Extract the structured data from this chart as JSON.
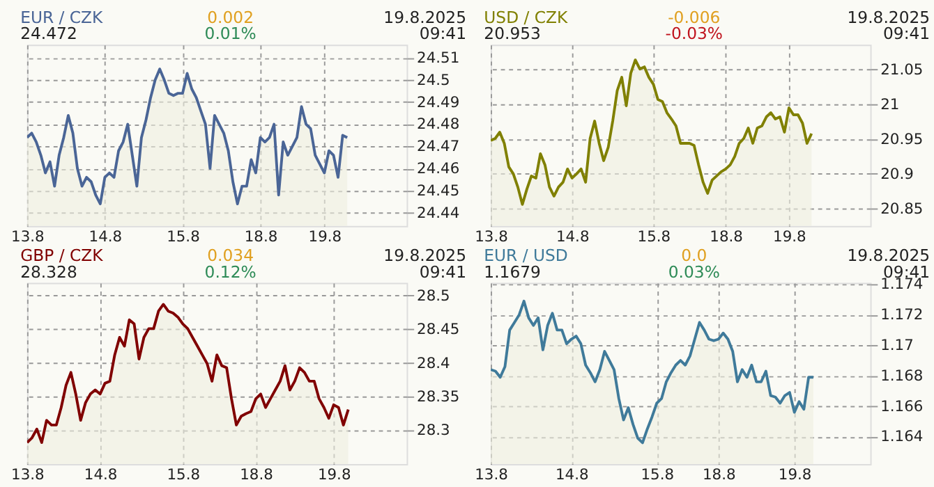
{
  "chart_data": [
    {
      "type": "area",
      "title": "EUR / CZK",
      "subtitle": "24.472",
      "annotations": [
        "0.002",
        "0.01%",
        "19.8.2025 09:41"
      ],
      "color": "#4a6596",
      "grid": true,
      "categories": [
        "13.8",
        null,
        null,
        null,
        null,
        null,
        null,
        null,
        null,
        null,
        null,
        null,
        null,
        null,
        null,
        null,
        null,
        "14.8",
        null,
        null,
        null,
        null,
        null,
        null,
        null,
        null,
        null,
        null,
        null,
        null,
        null,
        null,
        null,
        null,
        "15.8",
        null,
        null,
        null,
        null,
        null,
        null,
        null,
        null,
        null,
        null,
        null,
        null,
        null,
        null,
        null,
        null,
        "18.8",
        null,
        null,
        null,
        null,
        null,
        null,
        null,
        null,
        null,
        null,
        null,
        null,
        null,
        "19.8",
        null,
        null,
        null,
        null,
        null,
        null,
        null,
        null,
        null,
        null,
        null,
        null,
        null,
        null,
        null,
        null,
        null,
        null
      ],
      "ylim": [
        24.434,
        24.516
      ],
      "yticks": [
        24.44,
        24.45,
        24.46,
        24.47,
        24.48,
        24.49,
        24.5,
        24.51
      ],
      "values": [
        24.474,
        24.476,
        24.472,
        24.466,
        24.458,
        24.463,
        24.452,
        24.466,
        24.474,
        24.484,
        24.476,
        24.46,
        24.452,
        24.456,
        24.454,
        24.448,
        24.444,
        24.456,
        24.458,
        24.456,
        24.468,
        24.472,
        24.48,
        24.466,
        24.452,
        24.474,
        24.482,
        24.492,
        24.5,
        24.505,
        24.5,
        24.494,
        24.493,
        24.494,
        24.494,
        24.503,
        24.496,
        24.492,
        24.486,
        24.48,
        24.46,
        24.484,
        24.48,
        24.476,
        24.468,
        24.454,
        24.444,
        24.452,
        24.452,
        24.464,
        24.458,
        24.474,
        24.472,
        24.474,
        24.48,
        24.448,
        24.472,
        24.466,
        24.47,
        24.474,
        24.488,
        24.48,
        24.478,
        24.466,
        24.462,
        24.458,
        24.468,
        24.466,
        24.456,
        24.475,
        24.474,
        null,
        null,
        null,
        null,
        null,
        null,
        null,
        null,
        null,
        null,
        null,
        null,
        null
      ]
    },
    {
      "type": "area",
      "title": "USD / CZK",
      "subtitle": "20.953",
      "annotations": [
        "-0.006",
        "-0.03%",
        "19.8.2025 09:41"
      ],
      "color": "#808000",
      "grid": true,
      "categories": [
        "13.8",
        null,
        null,
        null,
        null,
        null,
        null,
        null,
        null,
        null,
        null,
        null,
        null,
        null,
        null,
        null,
        null,
        null,
        "14.8",
        null,
        null,
        null,
        null,
        null,
        null,
        null,
        null,
        null,
        null,
        null,
        null,
        null,
        null,
        null,
        null,
        null,
        "15.8",
        null,
        null,
        null,
        null,
        null,
        null,
        null,
        null,
        null,
        null,
        null,
        null,
        null,
        null,
        null,
        "18.8",
        null,
        null,
        null,
        null,
        null,
        null,
        null,
        null,
        null,
        null,
        null,
        null,
        null,
        "19.8",
        null,
        null,
        null,
        null,
        null,
        null,
        null,
        null,
        null,
        null,
        null,
        null,
        null,
        null,
        null,
        null,
        null,
        null
      ],
      "ylim": [
        20.825,
        21.086
      ],
      "yticks": [
        20.85,
        20.9,
        20.95,
        21,
        21.05
      ],
      "values": [
        20.948,
        20.951,
        20.96,
        20.944,
        20.91,
        20.9,
        20.881,
        20.856,
        20.878,
        20.897,
        20.894,
        20.929,
        20.913,
        20.881,
        20.868,
        20.881,
        20.888,
        20.907,
        20.894,
        20.9,
        20.907,
        20.888,
        20.951,
        20.976,
        20.944,
        20.919,
        20.938,
        20.976,
        21.02,
        21.039,
        20.998,
        21.045,
        21.064,
        21.051,
        21.054,
        21.039,
        21.029,
        21.007,
        21.004,
        20.988,
        20.979,
        20.969,
        20.944,
        20.944,
        20.944,
        20.941,
        20.913,
        20.888,
        20.872,
        20.891,
        20.897,
        20.903,
        20.907,
        20.913,
        20.925,
        20.944,
        20.951,
        20.966,
        20.944,
        20.966,
        20.969,
        20.982,
        20.988,
        20.979,
        20.982,
        20.96,
        20.995,
        20.985,
        20.985,
        20.973,
        20.944,
        20.958,
        null,
        null,
        null,
        null,
        null,
        null,
        null,
        null,
        null,
        null,
        null,
        null,
        null
      ]
    },
    {
      "type": "area",
      "title": "GBP / CZK",
      "subtitle": "28.328",
      "annotations": [
        "0.034",
        "0.12%",
        "19.8.2025 09:41"
      ],
      "color": "#800000",
      "grid": true,
      "categories": [
        "13.8",
        null,
        null,
        null,
        null,
        null,
        null,
        null,
        null,
        null,
        null,
        null,
        null,
        null,
        null,
        "14.8",
        null,
        null,
        null,
        null,
        null,
        null,
        null,
        null,
        null,
        null,
        null,
        null,
        null,
        null,
        null,
        null,
        "15.8",
        null,
        null,
        null,
        null,
        null,
        null,
        null,
        null,
        null,
        null,
        null,
        null,
        null,
        null,
        "18.8",
        null,
        null,
        null,
        null,
        null,
        null,
        null,
        null,
        null,
        null,
        null,
        null,
        null,
        null,
        null,
        "19.8",
        null,
        null,
        null,
        null,
        null,
        null,
        null,
        null,
        null,
        null,
        null,
        null,
        null,
        null,
        null
      ],
      "ylim": [
        28.25,
        28.519
      ],
      "yticks": [
        28.3,
        28.35,
        28.4,
        28.45,
        28.5
      ],
      "values": [
        28.282,
        28.289,
        28.302,
        28.282,
        28.315,
        28.308,
        28.308,
        28.334,
        28.367,
        28.386,
        28.354,
        28.315,
        28.341,
        28.354,
        28.36,
        28.354,
        28.37,
        28.373,
        28.412,
        28.438,
        28.425,
        28.464,
        28.458,
        28.406,
        28.438,
        28.451,
        28.451,
        28.477,
        28.487,
        28.477,
        28.474,
        28.468,
        28.458,
        28.451,
        28.438,
        28.425,
        28.412,
        28.399,
        28.373,
        28.412,
        28.396,
        28.393,
        28.347,
        28.308,
        28.321,
        28.325,
        28.328,
        28.347,
        28.354,
        28.334,
        28.347,
        28.36,
        28.373,
        28.396,
        28.36,
        28.373,
        28.393,
        28.386,
        28.373,
        28.373,
        28.347,
        28.334,
        28.318,
        28.338,
        28.334,
        28.308,
        28.331,
        null,
        null,
        null,
        null,
        null,
        null,
        null,
        null,
        null,
        null,
        null,
        null
      ]
    },
    {
      "type": "area",
      "title": "EUR / USD",
      "subtitle": "1.1679",
      "annotations": [
        "0.0",
        "0.03%",
        "19.8.2025 09:41"
      ],
      "color": "#3f7a9a",
      "grid": true,
      "categories": [
        "13.8",
        null,
        null,
        null,
        null,
        null,
        null,
        null,
        null,
        null,
        null,
        null,
        null,
        null,
        null,
        null,
        null,
        "14.8",
        null,
        null,
        null,
        null,
        null,
        null,
        null,
        null,
        null,
        null,
        null,
        null,
        null,
        null,
        null,
        null,
        null,
        "15.8",
        null,
        null,
        null,
        null,
        null,
        null,
        null,
        null,
        null,
        null,
        null,
        null,
        "18.8",
        null,
        null,
        null,
        null,
        null,
        null,
        null,
        null,
        null,
        null,
        null,
        null,
        null,
        null,
        null,
        "19.8",
        null,
        null,
        null,
        null,
        null,
        null,
        null,
        null,
        null,
        null,
        null,
        null,
        null,
        null,
        null,
        null
      ],
      "ylim": [
        1.1622,
        1.1741
      ],
      "yticks": [
        1.164,
        1.166,
        1.168,
        1.17,
        1.172,
        1.174
      ],
      "values": [
        1.1684,
        1.1683,
        1.1679,
        1.1686,
        1.171,
        1.1715,
        1.172,
        1.1729,
        1.1718,
        1.1713,
        1.1718,
        1.1697,
        1.1713,
        1.1721,
        1.171,
        1.171,
        1.1701,
        1.1704,
        1.1706,
        1.1701,
        1.1687,
        1.1682,
        1.1676,
        1.1684,
        1.1696,
        1.169,
        1.1684,
        1.1665,
        1.1651,
        1.1659,
        1.1648,
        1.1639,
        1.1636,
        1.1645,
        1.1653,
        1.1662,
        1.1665,
        1.1676,
        1.1682,
        1.1687,
        1.169,
        1.1687,
        1.1693,
        1.1704,
        1.1715,
        1.171,
        1.1704,
        1.1703,
        1.1704,
        1.1708,
        1.1704,
        1.1696,
        1.1676,
        1.1684,
        1.1679,
        1.1687,
        1.1676,
        1.1676,
        1.1683,
        1.1667,
        1.1666,
        1.1662,
        1.1667,
        1.1669,
        1.1656,
        1.1663,
        1.1658,
        1.1679,
        1.1679,
        null,
        null,
        null,
        null,
        null,
        null,
        null,
        null,
        null,
        null,
        null,
        null
      ]
    }
  ]
}
